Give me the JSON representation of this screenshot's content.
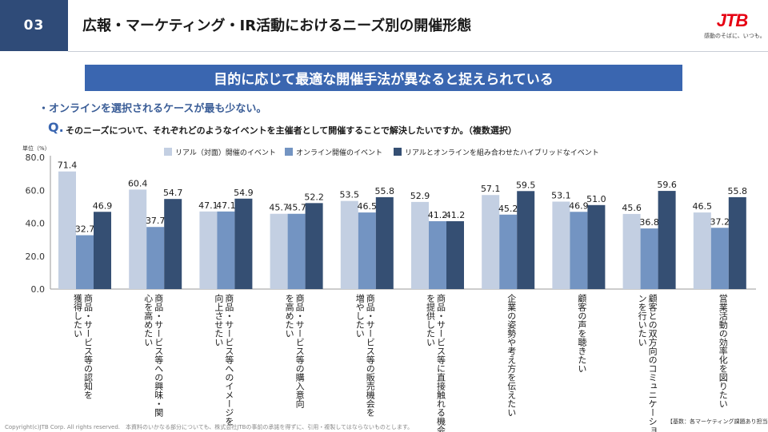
{
  "header": {
    "section_number": "03",
    "title": "広報・マーケティング・IR活動におけるニーズ別の開催形態",
    "logo_text": "JTB",
    "logo_tagline": "感動のそばに、いつも。"
  },
  "banner": "目的に応じて最適な開催手法が異なると捉えられている",
  "bullet": "・オンラインを選択されるケースが最も少ない。",
  "question": {
    "label": "Q.",
    "text": "そのニーズについて、それぞれどのようなイベントを主催者として開催することで解決したいですか。（複数選択）"
  },
  "colors": {
    "real": "#c3cfe2",
    "online": "#7394c2",
    "hybrid": "#354f73",
    "accent": "#2f4b78"
  },
  "chart_data": {
    "type": "bar",
    "unit_label": "単位（%）",
    "ylim": [
      0,
      80
    ],
    "yticks": [
      "0.0",
      "20.0",
      "40.0",
      "60.0",
      "80.0"
    ],
    "categories": [
      "商品・サービス等の認知を獲得したい",
      "商品・サービス等への興味・関心を高めたい",
      "商品・サービス等へのイメージを向上させたい",
      "商品・サービス等の購入意向を高めたい",
      "商品・サービス等の販売機会を増やしたい",
      "商品・サービス等に直接触れる機会を提供したい",
      "企業の姿勢や考え方を伝えたい",
      "顧客の声を聴きたい",
      "顧客との双方向のコミュニケーションを行いたい",
      "営業活動の効率化を図りたい"
    ],
    "series": [
      {
        "name": "リアル（対面）開催のイベント",
        "values": [
          71.4,
          60.4,
          47.1,
          45.7,
          53.5,
          52.9,
          57.1,
          53.1,
          45.6,
          46.5
        ]
      },
      {
        "name": "オンライン開催のイベント",
        "values": [
          32.7,
          37.7,
          47.1,
          45.7,
          46.5,
          41.2,
          45.2,
          46.9,
          36.8,
          37.2
        ]
      },
      {
        "name": "リアルとオンラインを組み合わせたハイブリッドなイベント",
        "values": [
          46.9,
          54.7,
          54.9,
          52.2,
          55.8,
          41.2,
          59.5,
          51.0,
          59.6,
          55.8
        ]
      }
    ]
  },
  "footer": {
    "copyright": "Copyright(c)JTB Corp. All rights reserved.　本資料のいかなる部分についても、株式会社JTBの事前の承諾を得ずに、引用・複製してはならないものとします。",
    "base": "【基数：各マーケティング課題あり担当者】"
  }
}
